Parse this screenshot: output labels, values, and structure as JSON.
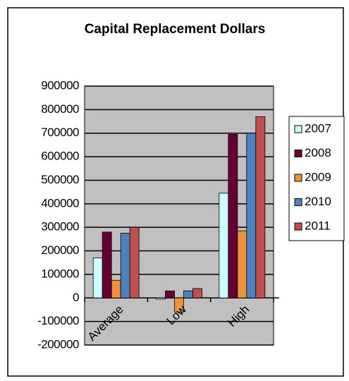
{
  "chart_data": {
    "type": "bar",
    "title": "Capital Replacement Dollars",
    "categories": [
      "Average",
      "Low",
      "High"
    ],
    "series": [
      {
        "name": "2007",
        "color": "#ccffff",
        "values": [
          170000,
          -5000,
          445000
        ]
      },
      {
        "name": "2008",
        "color": "#660033",
        "values": [
          280000,
          30000,
          695000
        ]
      },
      {
        "name": "2009",
        "color": "#f0923b",
        "values": [
          75000,
          -60000,
          285000
        ]
      },
      {
        "name": "2010",
        "color": "#4f81bd",
        "values": [
          275000,
          30000,
          700000
        ]
      },
      {
        "name": "2011",
        "color": "#c0504d",
        "values": [
          300000,
          40000,
          770000
        ]
      }
    ],
    "ylim": [
      -200000,
      900000
    ],
    "yticks": [
      -200000,
      -100000,
      0,
      100000,
      200000,
      300000,
      400000,
      500000,
      600000,
      700000,
      800000,
      900000
    ],
    "grid": true,
    "legend": "right"
  }
}
